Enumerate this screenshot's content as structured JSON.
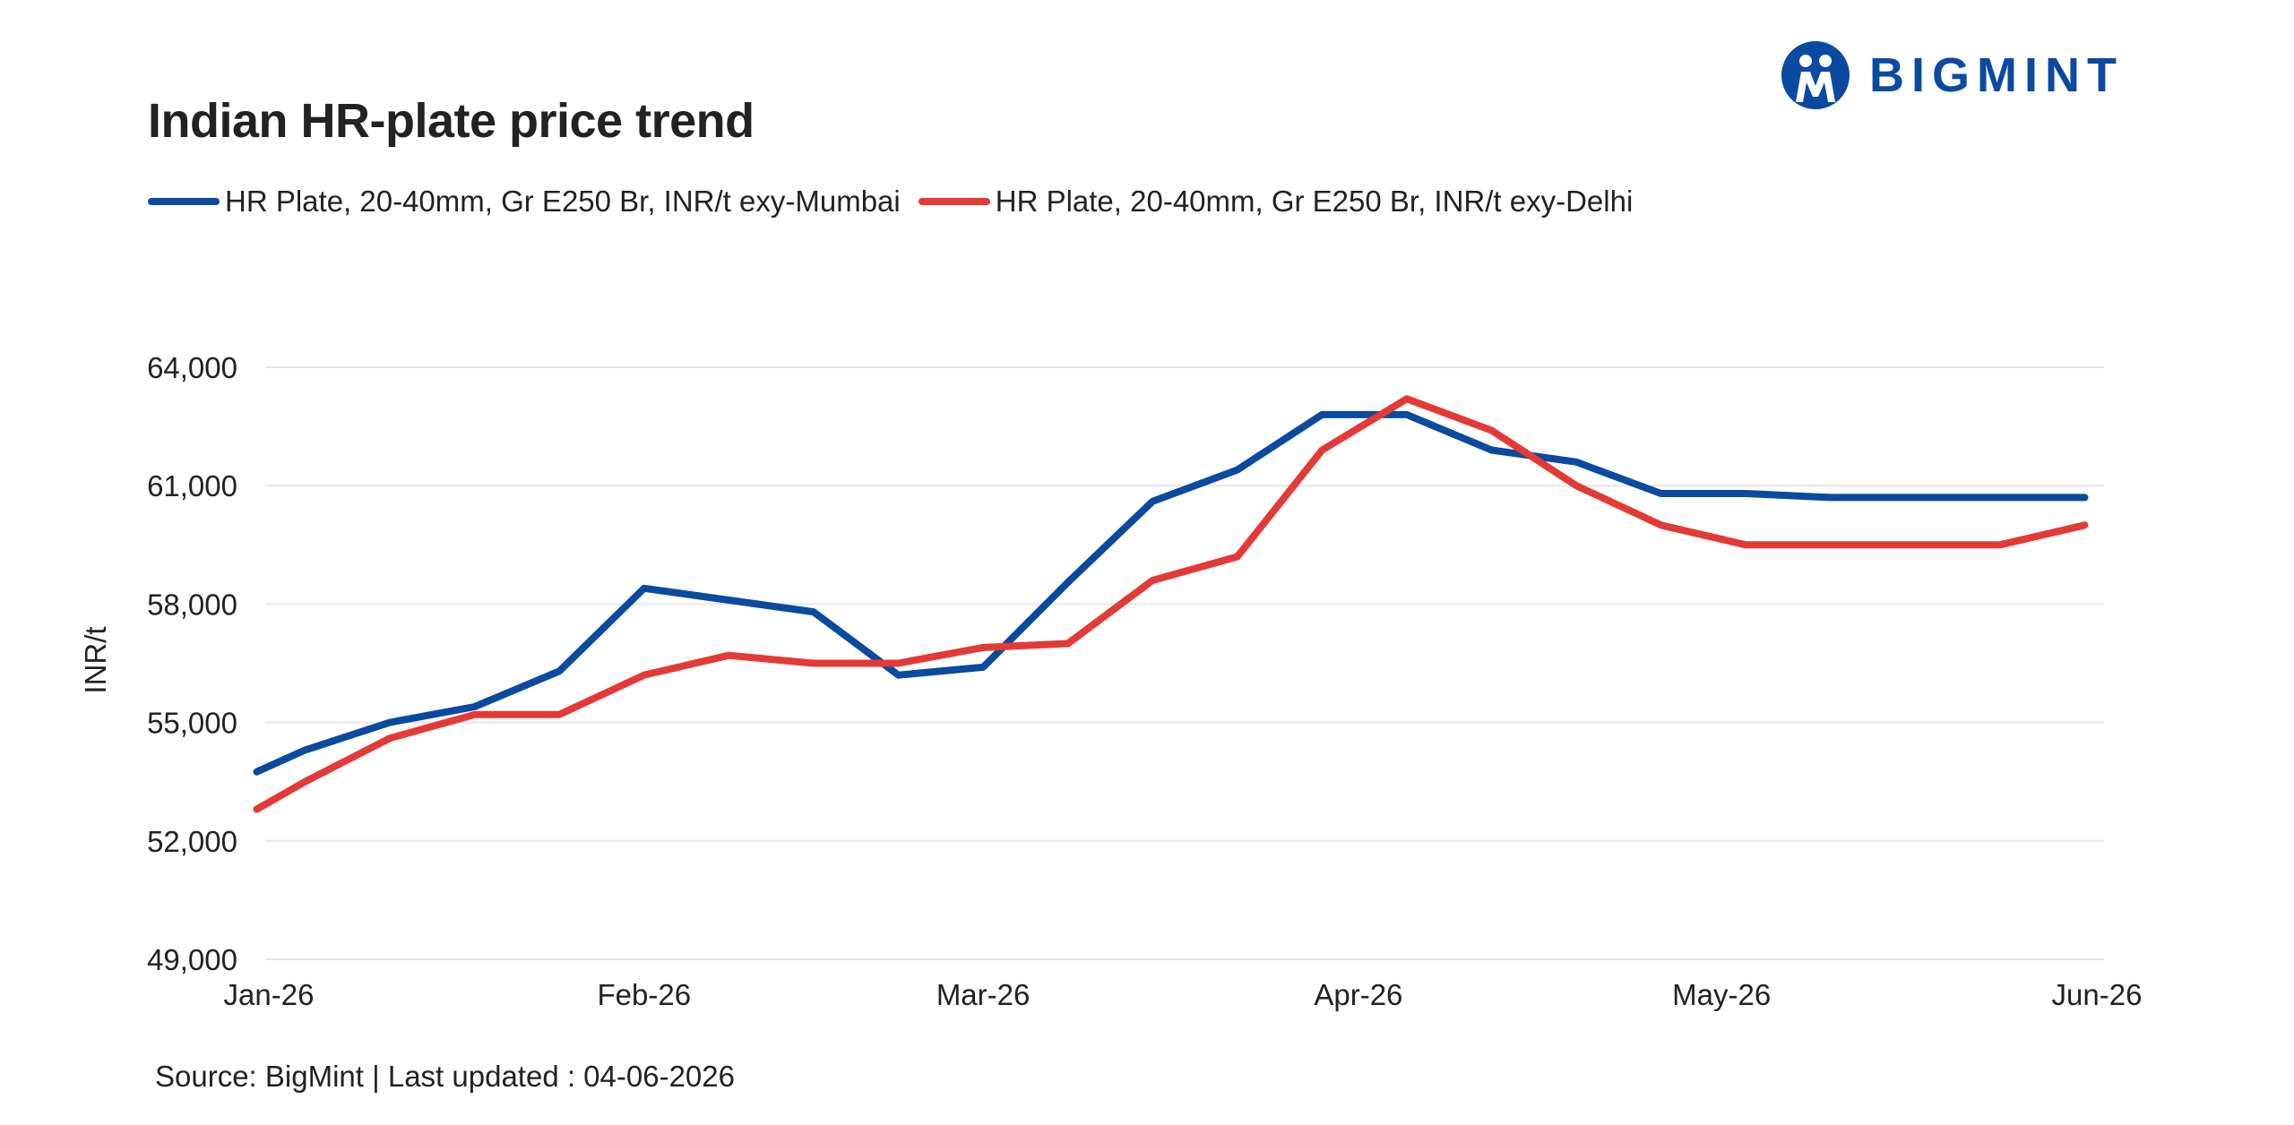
{
  "brand": {
    "logo_text": "BIGMINT",
    "logo_color": "#0a4aa0"
  },
  "footer": {
    "source": "Source: BigMint | Last updated : 04-06-2026"
  },
  "chart_data": {
    "type": "line",
    "title": "Indian HR-plate price trend",
    "ylabel": "INR/t",
    "xlabel": "",
    "ylim": [
      49000,
      64000
    ],
    "yticks": [
      49000,
      52000,
      55000,
      58000,
      61000,
      64000
    ],
    "ytick_labels": [
      "49,000",
      "52,000",
      "55,000",
      "58,000",
      "61,000",
      "64,000"
    ],
    "xticks": [
      "2026-01-01",
      "2026-02-01",
      "2026-03-01",
      "2026-04-01",
      "2026-05-01",
      "2026-06-01"
    ],
    "xtick_labels": [
      "Jan-26",
      "Feb-26",
      "Mar-26",
      "Apr-26",
      "May-26",
      "Jun-26"
    ],
    "xlim": [
      "2026-01-01",
      "2026-06-01"
    ],
    "grid": true,
    "legend_position": "top-left",
    "series": [
      {
        "name": "HR Plate, 20-40mm, Gr E250 Br, INR/t exy-Mumbai",
        "color": "#0a4aa0",
        "points": [
          [
            "2025-12-31",
            53750
          ],
          [
            "2026-01-04",
            54300
          ],
          [
            "2026-01-11",
            55000
          ],
          [
            "2026-01-18",
            55400
          ],
          [
            "2026-01-25",
            56300
          ],
          [
            "2026-02-01",
            58400
          ],
          [
            "2026-02-08",
            58100
          ],
          [
            "2026-02-15",
            57800
          ],
          [
            "2026-02-22",
            56200
          ],
          [
            "2026-03-01",
            56400
          ],
          [
            "2026-03-08",
            58550
          ],
          [
            "2026-03-15",
            60600
          ],
          [
            "2026-03-22",
            61400
          ],
          [
            "2026-03-29",
            62800
          ],
          [
            "2026-04-05",
            62800
          ],
          [
            "2026-04-12",
            61900
          ],
          [
            "2026-04-19",
            61600
          ],
          [
            "2026-04-26",
            60800
          ],
          [
            "2026-05-03",
            60800
          ],
          [
            "2026-05-10",
            60700
          ],
          [
            "2026-05-17",
            60700
          ],
          [
            "2026-05-24",
            60700
          ],
          [
            "2026-05-31",
            60700
          ]
        ]
      },
      {
        "name": "HR Plate, 20-40mm, Gr E250 Br, INR/t exy-Delhi",
        "color": "#e53935",
        "points": [
          [
            "2025-12-31",
            52800
          ],
          [
            "2026-01-04",
            53500
          ],
          [
            "2026-01-11",
            54600
          ],
          [
            "2026-01-18",
            55200
          ],
          [
            "2026-01-25",
            55200
          ],
          [
            "2026-02-01",
            56200
          ],
          [
            "2026-02-08",
            56700
          ],
          [
            "2026-02-15",
            56500
          ],
          [
            "2026-02-22",
            56500
          ],
          [
            "2026-03-01",
            56900
          ],
          [
            "2026-03-08",
            57000
          ],
          [
            "2026-03-15",
            58600
          ],
          [
            "2026-03-22",
            59200
          ],
          [
            "2026-03-29",
            61900
          ],
          [
            "2026-04-05",
            63200
          ],
          [
            "2026-04-12",
            62400
          ],
          [
            "2026-04-19",
            61000
          ],
          [
            "2026-04-26",
            60000
          ],
          [
            "2026-05-03",
            59500
          ],
          [
            "2026-05-10",
            59500
          ],
          [
            "2026-05-17",
            59500
          ],
          [
            "2026-05-24",
            59500
          ],
          [
            "2026-05-31",
            60000
          ]
        ]
      }
    ]
  }
}
